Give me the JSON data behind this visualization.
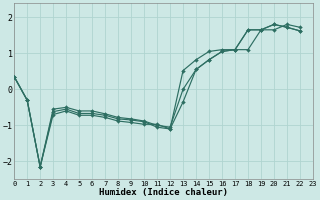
{
  "xlabel": "Humidex (Indice chaleur)",
  "background_color": "#cde8e5",
  "grid_color": "#b0d4d0",
  "line_color": "#2d6e62",
  "xlim": [
    0,
    23
  ],
  "ylim": [
    -2.5,
    2.4
  ],
  "xticks": [
    0,
    1,
    2,
    3,
    4,
    5,
    6,
    7,
    8,
    9,
    10,
    11,
    12,
    13,
    14,
    15,
    16,
    17,
    18,
    19,
    20,
    21,
    22,
    23
  ],
  "yticks": [
    -2,
    -1,
    0,
    1,
    2
  ],
  "series": [
    {
      "x": [
        0,
        1,
        2,
        3,
        4,
        5,
        6,
        7,
        8,
        9,
        10,
        11,
        12,
        13,
        14,
        15,
        16,
        17,
        18,
        19,
        20,
        21,
        22
      ],
      "y": [
        0.35,
        -0.3,
        -2.15,
        -0.7,
        -0.6,
        -0.72,
        -0.72,
        -0.78,
        -0.88,
        -0.92,
        -0.97,
        -0.97,
        -1.1,
        -0.35,
        0.55,
        0.82,
        1.05,
        1.1,
        1.1,
        1.65,
        1.65,
        1.8,
        1.72
      ]
    },
    {
      "x": [
        0,
        1,
        2,
        3,
        4,
        5,
        6,
        7,
        8,
        9,
        10,
        11,
        12,
        13,
        14,
        15,
        16,
        17,
        18,
        19,
        20,
        21,
        22
      ],
      "y": [
        0.35,
        -0.3,
        -2.15,
        -0.62,
        -0.55,
        -0.67,
        -0.67,
        -0.72,
        -0.82,
        -0.85,
        -0.9,
        -1.05,
        -1.1,
        0.52,
        0.82,
        1.05,
        1.1,
        1.1,
        1.65,
        1.65,
        1.8,
        1.72,
        1.62
      ]
    },
    {
      "x": [
        0,
        1,
        2,
        3,
        4,
        5,
        6,
        7,
        8,
        9,
        10,
        11,
        12,
        13,
        14,
        15,
        16,
        17,
        18,
        19,
        20,
        21,
        22
      ],
      "y": [
        0.35,
        -0.3,
        -2.15,
        -0.55,
        -0.5,
        -0.6,
        -0.6,
        -0.68,
        -0.78,
        -0.82,
        -0.88,
        -1.0,
        -1.05,
        0.0,
        0.55,
        0.82,
        1.05,
        1.1,
        1.65,
        1.65,
        1.8,
        1.72,
        1.62
      ]
    }
  ]
}
